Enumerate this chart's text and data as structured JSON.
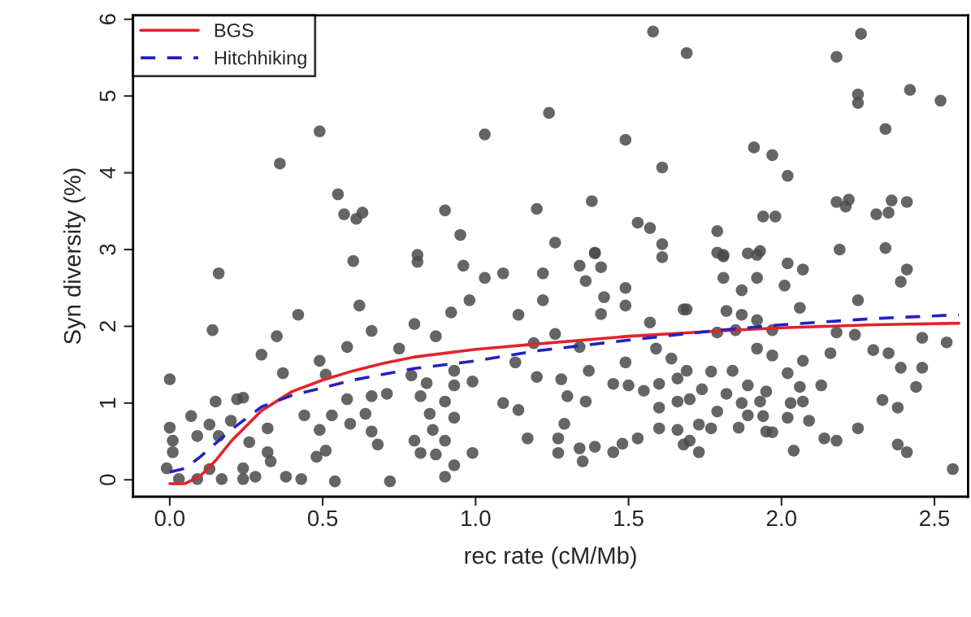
{
  "chart_data": {
    "type": "scatter",
    "xlabel": "rec rate (cM/Mb)",
    "ylabel": "Syn diversity (%)",
    "xlim": [
      -0.12,
      2.61
    ],
    "ylim": [
      -0.22,
      6.05
    ],
    "xticks": [
      {
        "value": 0,
        "label": "0.0"
      },
      0.5,
      {
        "value": 1,
        "label": "1.0"
      },
      1.5,
      {
        "value": 2,
        "label": "2.0"
      },
      2.5
    ],
    "yticks": [
      0,
      1,
      2,
      3,
      4,
      5,
      6
    ],
    "grid": false,
    "legend": "top left",
    "series": [
      {
        "color": "#4a4a4a",
        "marker": "circle",
        "x": [
          0.49,
          0.36,
          0.55,
          0.57,
          0.63,
          0.61,
          1.58,
          1.69,
          1.24,
          1.03,
          1.49,
          1.61,
          0.9,
          1.2,
          1.38,
          1.53,
          1.57,
          1.61,
          0.95,
          1.26,
          1.39,
          0.81,
          2.26,
          2.18,
          2.25,
          2.25,
          2.42,
          2.52,
          2.34,
          1.91,
          1.97,
          2.02,
          2.18,
          2.22,
          2.21,
          2.36,
          2.41,
          2.31,
          2.35,
          1.94,
          1.98,
          1.79,
          1.79,
          1.81,
          1.89,
          1.93,
          2.19,
          2.34,
          0.16,
          0.6,
          0.14,
          0.42,
          0.35,
          0.62,
          0.66,
          0.58,
          0.75,
          0.3,
          0.37,
          0.0,
          0.49,
          0.51,
          0.58,
          0.66,
          0.71,
          0.64,
          0.66,
          0.68,
          0.59,
          0.53,
          0.44,
          0.49,
          0.51,
          0.48,
          0.32,
          0.32,
          0.33,
          0.38,
          0.43,
          0.54,
          0.72,
          0.15,
          0.22,
          0.24,
          0.07,
          0.2,
          0.13,
          0.0,
          0.01,
          0.01,
          0.09,
          0.16,
          0.26,
          -0.01,
          0.09,
          0.17,
          0.24,
          0.24,
          0.28,
          0.03,
          0.13,
          0.81,
          0.96,
          1.03,
          1.09,
          1.22,
          1.34,
          1.36,
          1.41,
          1.39,
          1.61,
          0.98,
          0.92,
          1.22,
          1.14,
          1.42,
          1.49,
          1.49,
          1.41,
          1.68,
          0.8,
          0.87,
          1.57,
          1.26,
          1.19,
          1.34,
          1.59,
          1.64,
          1.13,
          1.49,
          1.37,
          0.93,
          0.84,
          0.99,
          0.93,
          0.79,
          1.2,
          1.28,
          1.45,
          1.5,
          1.55,
          1.6,
          1.66,
          0.82,
          1.3,
          1.36,
          0.9,
          1.09,
          1.14,
          1.6,
          1.66,
          0.85,
          0.93,
          1.29,
          0.86,
          1.6,
          1.66,
          0.8,
          0.9,
          1.17,
          1.27,
          1.53,
          1.48,
          1.45,
          0.99,
          0.82,
          0.87,
          1.27,
          1.34,
          1.39,
          1.35,
          1.68,
          0.93,
          0.9,
          1.81,
          1.92,
          2.02,
          2.07,
          2.41,
          2.39,
          1.81,
          1.92,
          1.87,
          2.01,
          2.25,
          1.69,
          1.82,
          1.87,
          2.06,
          1.92,
          1.79,
          1.85,
          1.97,
          2.18,
          2.24,
          2.46,
          2.54,
          2.16,
          2.3,
          2.35,
          2.07,
          1.92,
          1.97,
          2.39,
          2.46,
          2.44,
          1.69,
          1.77,
          1.84,
          2.02,
          1.89,
          2.13,
          2.06,
          1.74,
          1.82,
          1.95,
          1.7,
          1.93,
          2.03,
          2.07,
          1.87,
          1.79,
          1.89,
          2.33,
          2.38,
          1.94,
          2.02,
          2.09,
          1.73,
          1.77,
          1.86,
          1.95,
          1.97,
          2.25,
          2.14,
          2.18,
          1.7,
          1.73,
          2.04,
          2.38,
          2.41,
          2.56
        ],
        "values": [
          4.54,
          4.12,
          3.72,
          3.46,
          3.48,
          3.4,
          5.84,
          5.56,
          4.78,
          4.5,
          4.43,
          4.07,
          3.51,
          3.53,
          3.63,
          3.35,
          3.28,
          3.07,
          3.19,
          3.09,
          2.96,
          2.93,
          5.81,
          5.51,
          5.02,
          4.91,
          5.08,
          4.94,
          4.57,
          4.33,
          4.23,
          3.96,
          3.62,
          3.65,
          3.56,
          3.64,
          3.62,
          3.46,
          3.48,
          3.43,
          3.43,
          3.24,
          2.96,
          2.93,
          2.95,
          2.98,
          3.0,
          3.02,
          2.69,
          2.85,
          1.95,
          2.15,
          1.87,
          2.27,
          1.94,
          1.73,
          1.71,
          1.63,
          1.39,
          1.31,
          1.55,
          1.37,
          1.05,
          1.09,
          1.12,
          0.86,
          0.63,
          0.46,
          0.73,
          0.84,
          0.84,
          0.65,
          0.38,
          0.3,
          0.67,
          0.36,
          0.24,
          0.04,
          0.01,
          -0.02,
          -0.02,
          1.02,
          1.05,
          1.07,
          0.83,
          0.77,
          0.72,
          0.68,
          0.51,
          0.36,
          0.57,
          0.57,
          0.49,
          0.15,
          0.01,
          0.01,
          0.15,
          0.01,
          0.04,
          0.01,
          0.14,
          2.84,
          2.79,
          2.63,
          2.69,
          2.69,
          2.79,
          2.59,
          2.77,
          2.95,
          2.9,
          2.34,
          2.18,
          2.34,
          2.15,
          2.38,
          2.5,
          2.27,
          2.16,
          2.22,
          2.03,
          1.87,
          2.05,
          1.9,
          1.78,
          1.73,
          1.71,
          1.58,
          1.53,
          1.53,
          1.42,
          1.42,
          1.26,
          1.28,
          1.23,
          1.36,
          1.34,
          1.31,
          1.25,
          1.23,
          1.16,
          1.25,
          1.32,
          1.09,
          1.09,
          1.02,
          1.02,
          1.0,
          0.91,
          0.94,
          1.02,
          0.86,
          0.81,
          0.73,
          0.65,
          0.67,
          0.65,
          0.51,
          0.51,
          0.54,
          0.54,
          0.54,
          0.47,
          0.36,
          0.35,
          0.35,
          0.33,
          0.35,
          0.41,
          0.43,
          0.24,
          0.46,
          0.19,
          0.04,
          2.91,
          2.93,
          2.82,
          2.74,
          2.74,
          2.58,
          2.63,
          2.63,
          2.47,
          2.53,
          2.34,
          2.22,
          2.2,
          2.15,
          2.24,
          2.08,
          1.92,
          1.95,
          1.95,
          1.92,
          1.89,
          1.85,
          1.79,
          1.65,
          1.69,
          1.65,
          1.55,
          1.71,
          1.62,
          1.46,
          1.46,
          1.21,
          1.42,
          1.41,
          1.42,
          1.39,
          1.23,
          1.23,
          1.21,
          1.18,
          1.12,
          1.15,
          1.05,
          1.02,
          1.0,
          1.02,
          1.0,
          0.89,
          0.84,
          1.04,
          0.94,
          0.83,
          0.81,
          0.77,
          0.72,
          0.67,
          0.68,
          0.63,
          0.62,
          0.67,
          0.54,
          0.51,
          0.51,
          0.36,
          0.38,
          0.46,
          0.36,
          0.14
        ]
      },
      {
        "type": "line",
        "name": "BGS",
        "color": "#e3232b",
        "line_style": "solid",
        "marker": "none",
        "x": [
          0.0,
          0.05,
          0.1,
          0.15,
          0.2,
          0.3,
          0.4,
          0.5,
          0.6,
          0.7,
          0.8,
          1.0,
          1.2,
          1.5,
          1.8,
          2.0,
          2.3,
          2.58
        ],
        "values": [
          -0.05,
          -0.05,
          0.05,
          0.25,
          0.5,
          0.9,
          1.15,
          1.3,
          1.42,
          1.52,
          1.6,
          1.7,
          1.77,
          1.87,
          1.94,
          1.98,
          2.02,
          2.04
        ]
      },
      {
        "type": "line",
        "name": "Hitchhiking",
        "color": "#2222c0",
        "line_style": "dashed",
        "marker": "none",
        "x": [
          0.0,
          0.05,
          0.1,
          0.2,
          0.3,
          0.4,
          0.5,
          0.6,
          0.8,
          1.0,
          1.2,
          1.5,
          1.8,
          2.0,
          2.3,
          2.58
        ],
        "values": [
          0.1,
          0.15,
          0.3,
          0.65,
          0.95,
          1.1,
          1.2,
          1.3,
          1.45,
          1.55,
          1.68,
          1.82,
          1.95,
          2.02,
          2.1,
          2.15
        ]
      }
    ]
  }
}
